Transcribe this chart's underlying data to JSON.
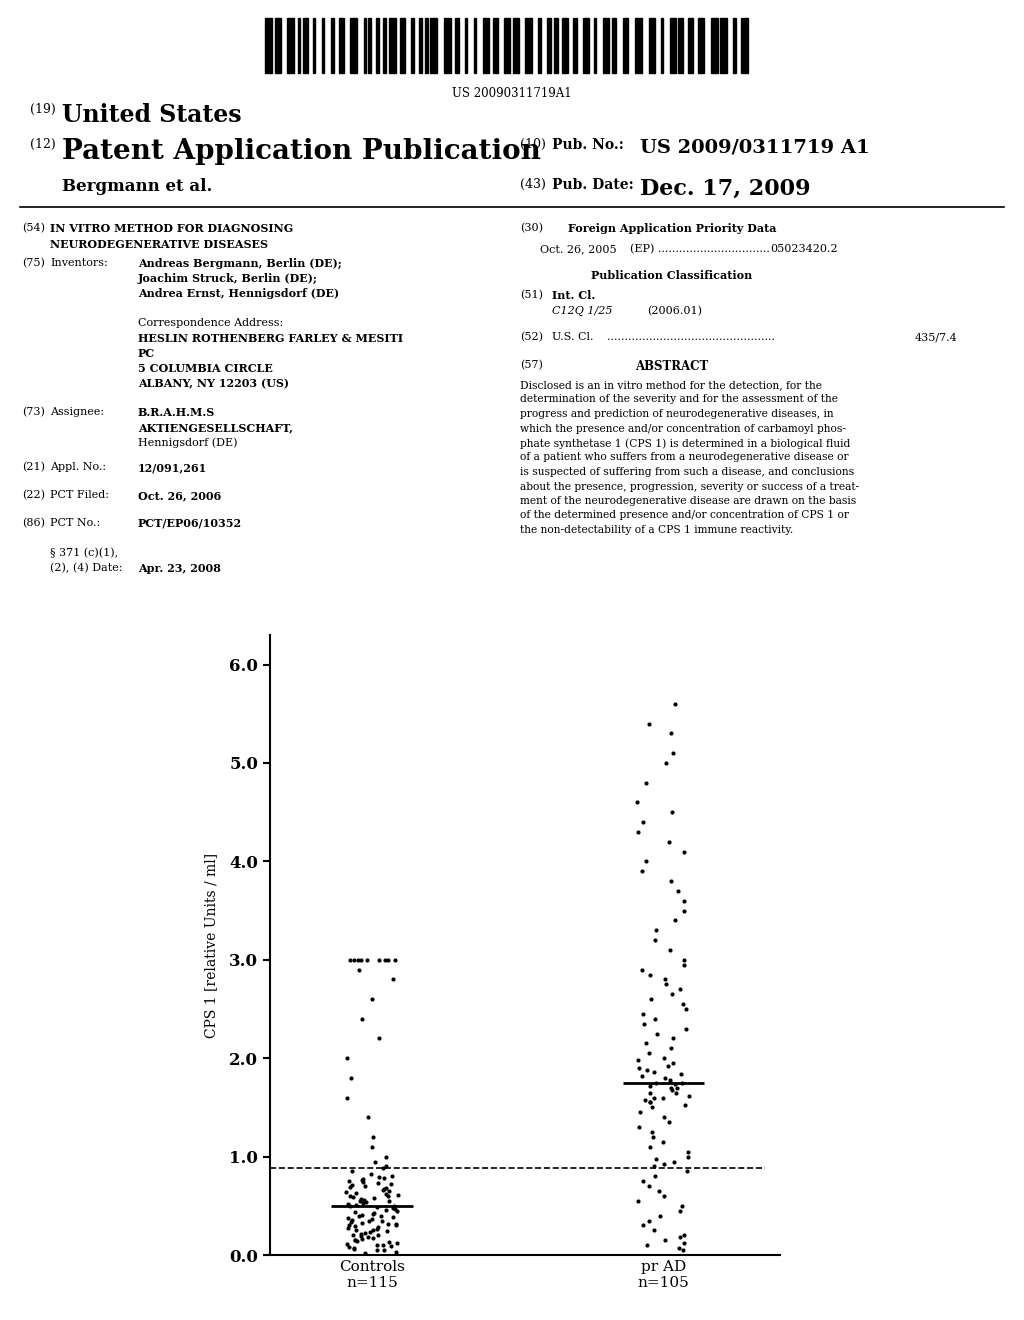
{
  "background_color": "#ffffff",
  "barcode_text": "US 20090311719A1",
  "plot": {
    "controls_median": 0.5,
    "prad_median": 1.75,
    "dashed_line_y": 0.88,
    "ylabel": "CPS 1 [relative Units / ml]",
    "xlabel_controls": "Controls\nn=115",
    "xlabel_prad": "pr AD\nn=105",
    "ylim_min": 0.0,
    "ylim_max": 6.3,
    "yticks": [
      0.0,
      1.0,
      2.0,
      3.0,
      4.0,
      5.0,
      6.0
    ],
    "controls_data": [
      0.02,
      0.03,
      0.05,
      0.05,
      0.06,
      0.07,
      0.08,
      0.09,
      0.1,
      0.1,
      0.11,
      0.12,
      0.13,
      0.14,
      0.15,
      0.15,
      0.16,
      0.17,
      0.18,
      0.19,
      0.2,
      0.2,
      0.21,
      0.22,
      0.23,
      0.24,
      0.25,
      0.25,
      0.26,
      0.27,
      0.28,
      0.29,
      0.3,
      0.3,
      0.31,
      0.32,
      0.33,
      0.34,
      0.35,
      0.35,
      0.36,
      0.37,
      0.38,
      0.39,
      0.4,
      0.4,
      0.41,
      0.42,
      0.43,
      0.44,
      0.45,
      0.46,
      0.47,
      0.48,
      0.49,
      0.5,
      0.5,
      0.51,
      0.52,
      0.53,
      0.54,
      0.55,
      0.55,
      0.56,
      0.57,
      0.58,
      0.59,
      0.6,
      0.6,
      0.61,
      0.62,
      0.63,
      0.64,
      0.65,
      0.66,
      0.67,
      0.68,
      0.69,
      0.7,
      0.71,
      0.72,
      0.73,
      0.74,
      0.75,
      0.76,
      0.77,
      0.78,
      0.79,
      0.8,
      0.82,
      0.85,
      0.88,
      0.9,
      0.95,
      1.0,
      1.1,
      1.2,
      1.4,
      1.6,
      1.8,
      2.0,
      2.2,
      2.4,
      2.6,
      2.8,
      2.9,
      3.0,
      3.0,
      3.0,
      3.0,
      3.0,
      3.0,
      3.0,
      3.0,
      3.0
    ],
    "prad_data": [
      0.05,
      0.07,
      0.1,
      0.12,
      0.15,
      0.18,
      0.2,
      0.25,
      0.3,
      0.35,
      0.4,
      0.45,
      0.5,
      0.55,
      0.6,
      0.65,
      0.7,
      0.75,
      0.8,
      0.85,
      0.9,
      0.92,
      0.95,
      0.98,
      1.0,
      1.05,
      1.1,
      1.15,
      1.2,
      1.25,
      1.3,
      1.35,
      1.4,
      1.45,
      1.5,
      1.52,
      1.55,
      1.58,
      1.6,
      1.62,
      1.65,
      1.68,
      1.7,
      1.72,
      1.74,
      1.75,
      1.76,
      1.78,
      1.8,
      1.82,
      1.84,
      1.86,
      1.88,
      1.9,
      1.92,
      1.95,
      1.98,
      2.0,
      2.05,
      2.1,
      2.15,
      2.2,
      2.25,
      2.3,
      2.35,
      2.4,
      2.45,
      2.5,
      2.55,
      2.6,
      2.65,
      2.7,
      2.75,
      2.8,
      2.85,
      2.9,
      2.95,
      3.0,
      3.1,
      3.2,
      3.3,
      3.4,
      3.5,
      3.6,
      3.7,
      3.8,
      3.9,
      4.0,
      4.1,
      4.2,
      4.3,
      4.4,
      4.5,
      4.6,
      4.8,
      5.0,
      5.1,
      5.3,
      5.4,
      5.6,
      1.55,
      1.6,
      1.65,
      1.7,
      1.75
    ]
  }
}
